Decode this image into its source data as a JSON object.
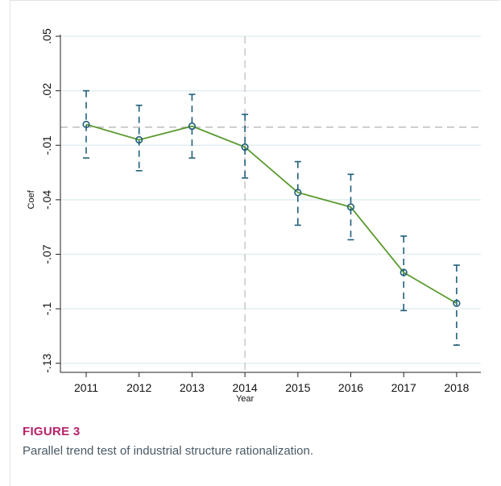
{
  "figure": {
    "label": "FIGURE 3",
    "caption": "Parallel trend test of industrial structure rationalization."
  },
  "colors": {
    "line": "#5a9a2f",
    "marker": "#1f5f7a",
    "errorbar": "#1f5f7a",
    "reference": "#c8c8c8",
    "grid": "#e2eef0",
    "figure_label": "#b6216a"
  },
  "chart_data": {
    "type": "line",
    "xlabel": "Year",
    "ylabel": "Coef",
    "categories": [
      "2011",
      "2012",
      "2013",
      "2014",
      "2015",
      "2016",
      "2017",
      "2018"
    ],
    "yticks": [
      0.05,
      0.02,
      -0.01,
      -0.04,
      -0.07,
      -0.1,
      -0.13
    ],
    "ytick_labels": [
      ".05",
      ".02",
      "-.01",
      "-.04",
      "-.07",
      "-.1",
      "-.13"
    ],
    "ylim": [
      -0.135,
      0.05
    ],
    "series": [
      {
        "values": [
          0.0015,
          -0.007,
          0.0005,
          -0.011,
          -0.036,
          -0.044,
          -0.08,
          -0.097
        ],
        "ci_upper": [
          0.02,
          0.012,
          0.018,
          0.007,
          -0.019,
          -0.026,
          -0.06,
          -0.076
        ],
        "ci_lower": [
          -0.017,
          -0.024,
          -0.017,
          -0.028,
          -0.054,
          -0.062,
          -0.101,
          -0.12
        ]
      }
    ],
    "reference_lines": {
      "horizontal_y": 0,
      "vertical_x": "2014"
    },
    "grid": true
  }
}
